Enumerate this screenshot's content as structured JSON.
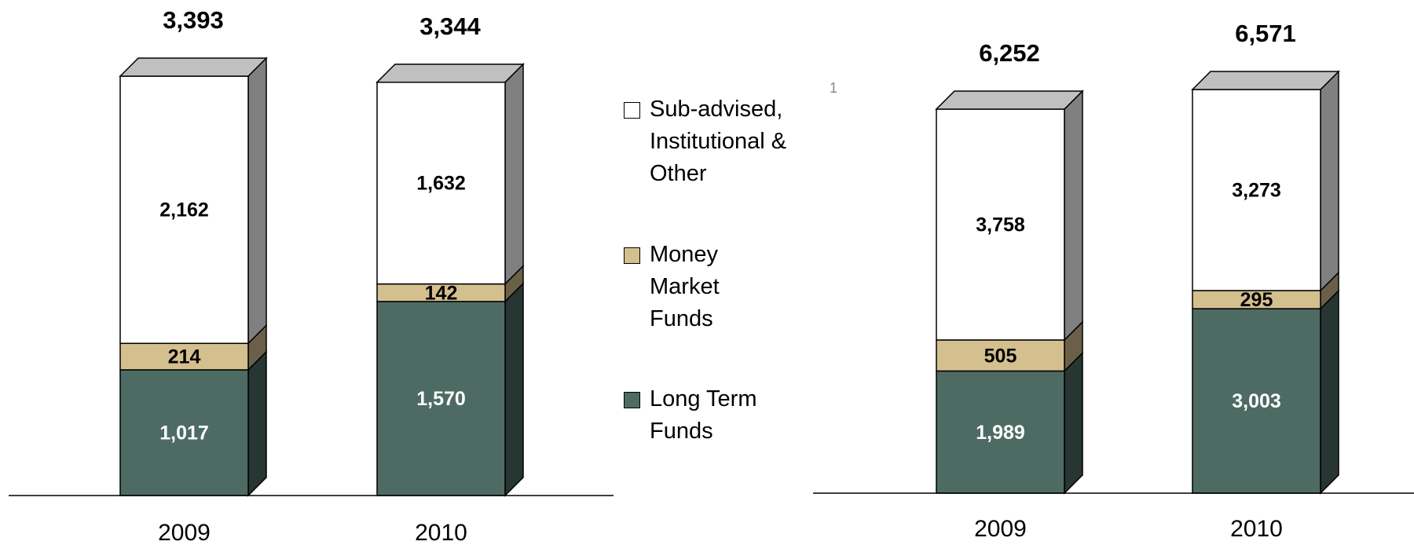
{
  "chart_data": [
    {
      "type": "bar",
      "stacked": true,
      "categories": [
        "2009",
        "2010"
      ],
      "series": [
        {
          "name": "Long Term Funds",
          "color": "#4d6b63",
          "values": [
            1017,
            1570
          ],
          "value_labels": [
            "1,017",
            "1,570"
          ]
        },
        {
          "name": "Money Market Funds",
          "color": "#d4bf8f",
          "values": [
            214,
            142
          ],
          "value_labels": [
            "214",
            "142"
          ]
        },
        {
          "name": "Sub-advised, Institutional & Other",
          "color": "#ffffff",
          "values": [
            2162,
            1632
          ],
          "value_labels": [
            "2,162",
            "1,632"
          ]
        }
      ],
      "totals": [
        3393,
        3344
      ],
      "totals_labels": [
        "3,393",
        "3,344"
      ]
    },
    {
      "type": "bar",
      "stacked": true,
      "categories": [
        "2009",
        "2010"
      ],
      "series": [
        {
          "name": "Long Term Funds",
          "color": "#4d6b63",
          "values": [
            1989,
            3003
          ],
          "value_labels": [
            "1,989",
            "3,003"
          ]
        },
        {
          "name": "Money Market Funds",
          "color": "#d4bf8f",
          "values": [
            505,
            295
          ],
          "value_labels": [
            "505",
            "295"
          ]
        },
        {
          "name": "Sub-advised, Institutional & Other",
          "color": "#ffffff",
          "values": [
            3758,
            3273
          ],
          "value_labels": [
            "3,758",
            "3,273"
          ]
        }
      ],
      "totals": [
        6252,
        6571
      ],
      "totals_labels": [
        "6,252",
        "6,571"
      ]
    }
  ],
  "footnote_marker": "1"
}
